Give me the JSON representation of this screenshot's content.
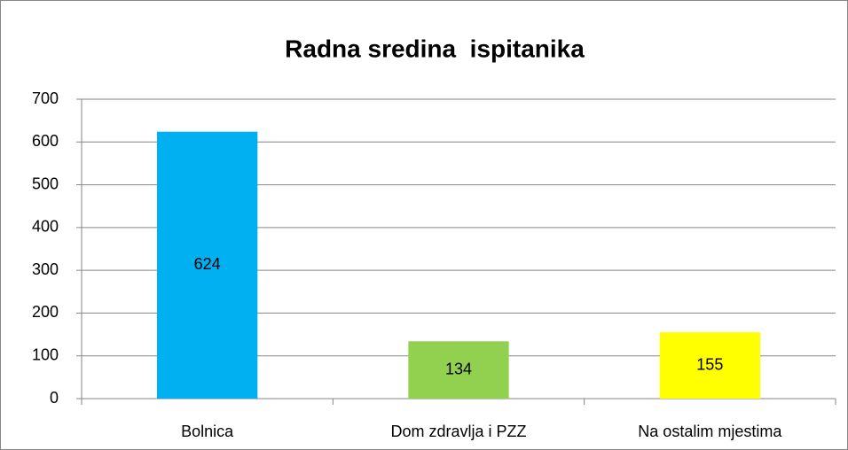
{
  "chart_data": {
    "type": "bar",
    "title": "Radna sredina  ispitanika",
    "categories": [
      "Bolnica",
      "Dom zdravlja i PZZ",
      "Na ostalim mjestima"
    ],
    "values": [
      624,
      134,
      155
    ],
    "colors": [
      "#00b0f0",
      "#92d050",
      "#ffff00"
    ],
    "ylim": [
      0,
      700
    ],
    "yticks": [
      0,
      100,
      200,
      300,
      400,
      500,
      600,
      700
    ],
    "grid": true
  }
}
